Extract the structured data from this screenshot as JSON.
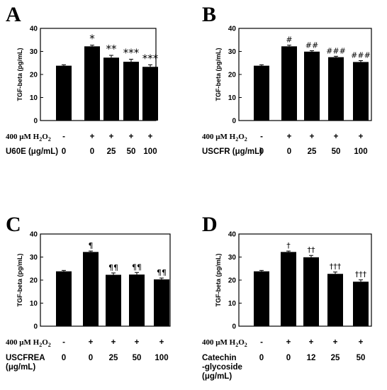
{
  "treatment": {
    "h2o2_label": "400 μM H",
    "h2o2_sub": "2",
    "h2o2_mid": "O",
    "h2o2_sub2": "2",
    "h2o2_values": [
      "-",
      "+",
      "+",
      "+",
      "+"
    ]
  },
  "chart_data": [
    {
      "type": "bar",
      "panel": "A",
      "ylabel": "TGF-beta (pg/mL)",
      "ylim": [
        0,
        40
      ],
      "yticks": [
        0,
        10,
        20,
        30,
        40
      ],
      "dose_label": [
        "U60E (μg/mL)"
      ],
      "categories": [
        "0",
        "0",
        "25",
        "50",
        "100"
      ],
      "values": [
        23.8,
        32.2,
        27.3,
        25.5,
        23.3
      ],
      "errors": [
        0.4,
        0.5,
        1.0,
        1.1,
        0.9
      ],
      "annotations": [
        "",
        "*",
        "**",
        "***",
        "***"
      ]
    },
    {
      "type": "bar",
      "panel": "B",
      "ylabel": "TGF-beta (pg/mL)",
      "ylim": [
        0,
        40
      ],
      "yticks": [
        0,
        10,
        20,
        30,
        40
      ],
      "dose_label": [
        "USCFR (μg/mL)"
      ],
      "categories": [
        "0",
        "0",
        "25",
        "50",
        "100"
      ],
      "values": [
        23.8,
        32.2,
        29.9,
        27.5,
        25.4
      ],
      "errors": [
        0.4,
        0.5,
        0.4,
        0.4,
        0.6
      ],
      "annotations": [
        "",
        "#",
        "##",
        "###",
        "###"
      ]
    },
    {
      "type": "bar",
      "panel": "C",
      "ylabel": "TGF-beta (pg/mL)",
      "ylim": [
        0,
        40
      ],
      "yticks": [
        0,
        10,
        20,
        30,
        40
      ],
      "dose_label": [
        "USCFREA",
        "(μg/mL)"
      ],
      "categories": [
        "0",
        "0",
        "25",
        "50",
        "100"
      ],
      "values": [
        23.8,
        32.2,
        22.3,
        22.4,
        20.3
      ],
      "errors": [
        0.4,
        0.4,
        0.8,
        0.9,
        0.6
      ],
      "annotations": [
        "",
        "¶",
        "¶¶",
        "¶¶",
        "¶¶"
      ]
    },
    {
      "type": "bar",
      "panel": "D",
      "ylabel": "TGF-beta (pg/mL)",
      "ylim": [
        0,
        40
      ],
      "yticks": [
        0,
        10,
        20,
        30,
        40
      ],
      "dose_label": [
        "Catechin",
        "-glycoside",
        "(μg/mL)"
      ],
      "categories": [
        "0",
        "0",
        "12",
        "25",
        "50"
      ],
      "values": [
        23.8,
        32.2,
        29.9,
        22.7,
        19.3
      ],
      "errors": [
        0.4,
        0.4,
        0.8,
        0.8,
        0.8
      ],
      "annotations": [
        "",
        "†",
        "††",
        "†††",
        "†††"
      ]
    }
  ]
}
